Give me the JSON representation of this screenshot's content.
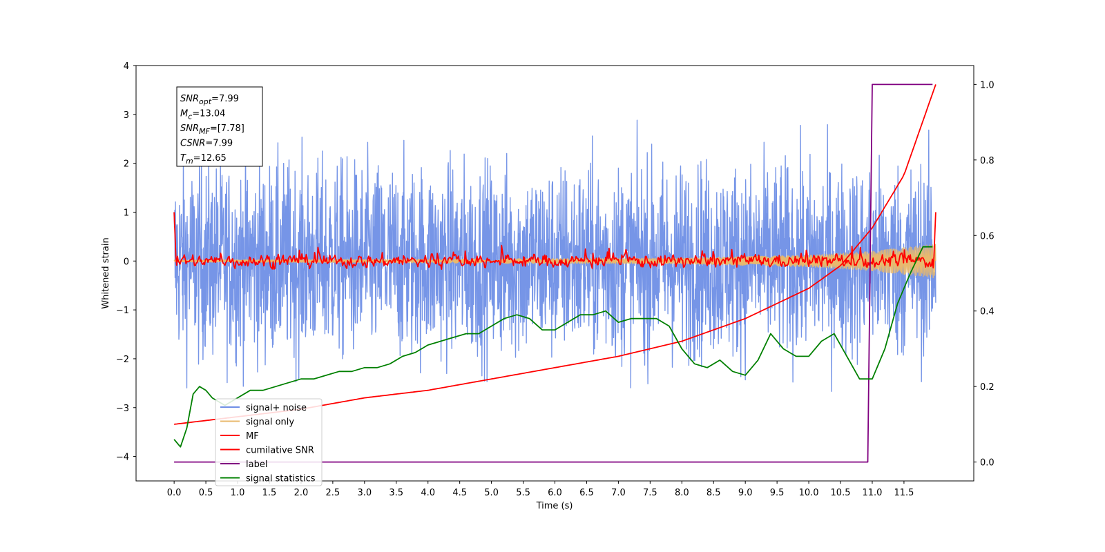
{
  "chart_data": {
    "type": "line",
    "xlabel": "Time (s)",
    "ylabel": "Whitened strain",
    "xlim": [
      -0.6,
      12.6
    ],
    "ylim": [
      -4.5,
      4.0
    ],
    "y2lim": [
      -0.05,
      1.05
    ],
    "x_ticks": [
      "0.0",
      "0.5",
      "1.0",
      "1.5",
      "2.0",
      "2.5",
      "3.0",
      "3.5",
      "4.0",
      "4.5",
      "5.0",
      "5.5",
      "6.0",
      "6.5",
      "7.0",
      "7.5",
      "8.0",
      "8.5",
      "9.0",
      "9.5",
      "10.0",
      "10.5",
      "11.0",
      "11.5"
    ],
    "y_ticks": [
      "4",
      "3",
      "2",
      "1",
      "0",
      "−1",
      "−2",
      "−3",
      "−4"
    ],
    "y2_ticks": [
      "1.0",
      "0.8",
      "0.6",
      "0.4",
      "0.2",
      "0.0"
    ],
    "annotation": {
      "lines": [
        {
          "name": "SNR",
          "sub": "opt",
          "value": "=7.99"
        },
        {
          "name": "M",
          "sub": "c",
          "value": "=13.04"
        },
        {
          "name": "SNR",
          "sub": "MF",
          "value": "=[7.78]"
        },
        {
          "name": "CSNR",
          "sub": "",
          "value": "=7.99"
        },
        {
          "name": "T",
          "sub": "m",
          "value": "=12.65"
        }
      ]
    },
    "legend_position": "lower-left",
    "series": [
      {
        "name": "signal+ noise",
        "color": "#6f8fe6",
        "axis": "left",
        "kind": "noise",
        "x_range": [
          0,
          12
        ],
        "spread": 1.0
      },
      {
        "name": "signal only",
        "color": "#e8b96e",
        "axis": "left",
        "kind": "chirp",
        "x_range": [
          0,
          12
        ],
        "envelope": [
          [
            0,
            0.02
          ],
          [
            8,
            0.06
          ],
          [
            10,
            0.12
          ],
          [
            11,
            0.2
          ],
          [
            12,
            0.35
          ]
        ]
      },
      {
        "name": "MF",
        "color": "#ff0000",
        "axis": "left",
        "kind": "mf",
        "x_range": [
          0,
          12
        ],
        "start": 1.0,
        "end": 1.0,
        "spread": 0.1
      },
      {
        "name": "cumilative SNR",
        "color": "#ff0000",
        "axis": "right",
        "x": [
          0,
          1,
          2,
          3,
          4,
          5,
          6,
          7,
          8,
          9,
          10,
          10.5,
          11,
          11.5,
          12
        ],
        "y": [
          0.1,
          0.12,
          0.14,
          0.17,
          0.19,
          0.22,
          0.25,
          0.28,
          0.32,
          0.38,
          0.46,
          0.52,
          0.62,
          0.76,
          1.0
        ]
      },
      {
        "name": "label",
        "color": "#800080",
        "axis": "right",
        "x": [
          0,
          10.93,
          11.0,
          11.95
        ],
        "y": [
          0.0,
          0.0,
          1.0,
          1.0
        ]
      },
      {
        "name": "signal statistics",
        "color": "#008000",
        "axis": "right",
        "x": [
          0.0,
          0.1,
          0.2,
          0.3,
          0.4,
          0.5,
          0.6,
          0.7,
          0.8,
          1.0,
          1.2,
          1.4,
          1.6,
          1.8,
          2.0,
          2.2,
          2.4,
          2.6,
          2.8,
          3.0,
          3.2,
          3.4,
          3.6,
          3.8,
          4.0,
          4.2,
          4.4,
          4.6,
          4.8,
          5.0,
          5.2,
          5.4,
          5.6,
          5.8,
          6.0,
          6.2,
          6.4,
          6.6,
          6.8,
          7.0,
          7.2,
          7.4,
          7.6,
          7.8,
          8.0,
          8.2,
          8.4,
          8.6,
          8.8,
          9.0,
          9.2,
          9.4,
          9.6,
          9.8,
          10.0,
          10.2,
          10.4,
          10.6,
          10.8,
          11.0,
          11.2,
          11.4,
          11.6,
          11.8,
          11.95
        ],
        "y": [
          0.06,
          0.04,
          0.09,
          0.18,
          0.2,
          0.19,
          0.17,
          0.16,
          0.15,
          0.17,
          0.19,
          0.19,
          0.2,
          0.21,
          0.22,
          0.22,
          0.23,
          0.24,
          0.24,
          0.25,
          0.25,
          0.26,
          0.28,
          0.29,
          0.31,
          0.32,
          0.33,
          0.34,
          0.34,
          0.36,
          0.38,
          0.39,
          0.38,
          0.35,
          0.35,
          0.37,
          0.39,
          0.39,
          0.4,
          0.37,
          0.38,
          0.38,
          0.38,
          0.36,
          0.3,
          0.26,
          0.25,
          0.27,
          0.24,
          0.23,
          0.27,
          0.34,
          0.3,
          0.28,
          0.28,
          0.32,
          0.34,
          0.28,
          0.22,
          0.22,
          0.3,
          0.42,
          0.5,
          0.57,
          0.57
        ]
      }
    ]
  }
}
